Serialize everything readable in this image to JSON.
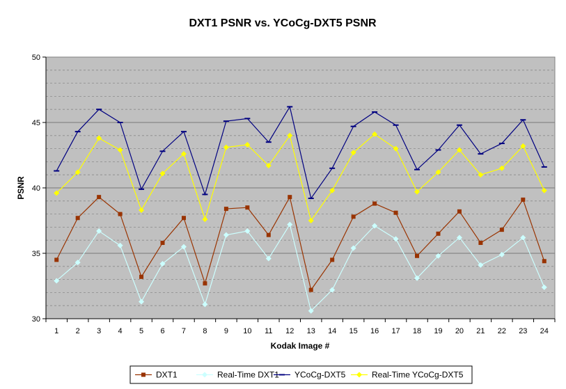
{
  "chart_data": {
    "type": "line",
    "title": "DXT1 PSNR vs. YCoCg-DXT5 PSNR",
    "xlabel": "Kodak Image #",
    "ylabel": "PSNR",
    "ylim": [
      30,
      50
    ],
    "yticks": [
      "30",
      "35",
      "40",
      "45",
      "50"
    ],
    "grid": "horizontal dashed minor every 1, solid major every 5",
    "plot_background": "#c0c0c0",
    "legend_placement": "bottom-center",
    "categories": [
      "1",
      "2",
      "3",
      "4",
      "5",
      "6",
      "7",
      "8",
      "9",
      "10",
      "11",
      "12",
      "13",
      "14",
      "15",
      "16",
      "17",
      "18",
      "19",
      "20",
      "21",
      "22",
      "23",
      "24"
    ],
    "series": [
      {
        "name": "DXT1",
        "color": "#993300",
        "marker": "square",
        "values": [
          34.5,
          37.7,
          39.3,
          38.0,
          33.2,
          35.8,
          37.7,
          32.7,
          38.4,
          38.5,
          36.4,
          39.3,
          32.2,
          34.5,
          37.8,
          38.8,
          38.1,
          34.8,
          36.5,
          38.2,
          35.8,
          36.8,
          39.1,
          34.4
        ]
      },
      {
        "name": "Real-Time DXT1",
        "color": "#ccffff",
        "marker": "diamond",
        "values": [
          32.9,
          34.3,
          36.7,
          35.6,
          31.3,
          34.2,
          35.5,
          31.1,
          36.4,
          36.7,
          34.6,
          37.2,
          30.6,
          32.2,
          35.4,
          37.1,
          36.1,
          33.1,
          34.8,
          36.2,
          34.1,
          34.9,
          36.2,
          32.4
        ]
      },
      {
        "name": "YCoCg-DXT5",
        "color": "#000080",
        "marker": "dash",
        "values": [
          41.3,
          44.3,
          46.0,
          45.0,
          39.9,
          42.8,
          44.3,
          39.5,
          45.1,
          45.3,
          43.5,
          46.2,
          39.2,
          41.5,
          44.7,
          45.8,
          44.8,
          41.4,
          42.9,
          44.8,
          42.6,
          43.4,
          45.2,
          41.6
        ]
      },
      {
        "name": "Real-Time YCoCg-DXT5",
        "color": "#ffff00",
        "marker": "diamond",
        "values": [
          39.6,
          41.2,
          43.8,
          42.9,
          38.3,
          41.1,
          42.6,
          37.6,
          43.1,
          43.3,
          41.7,
          44.0,
          37.5,
          39.8,
          42.7,
          44.1,
          43.0,
          39.7,
          41.2,
          42.9,
          41.0,
          41.5,
          43.2,
          39.8
        ]
      }
    ]
  }
}
